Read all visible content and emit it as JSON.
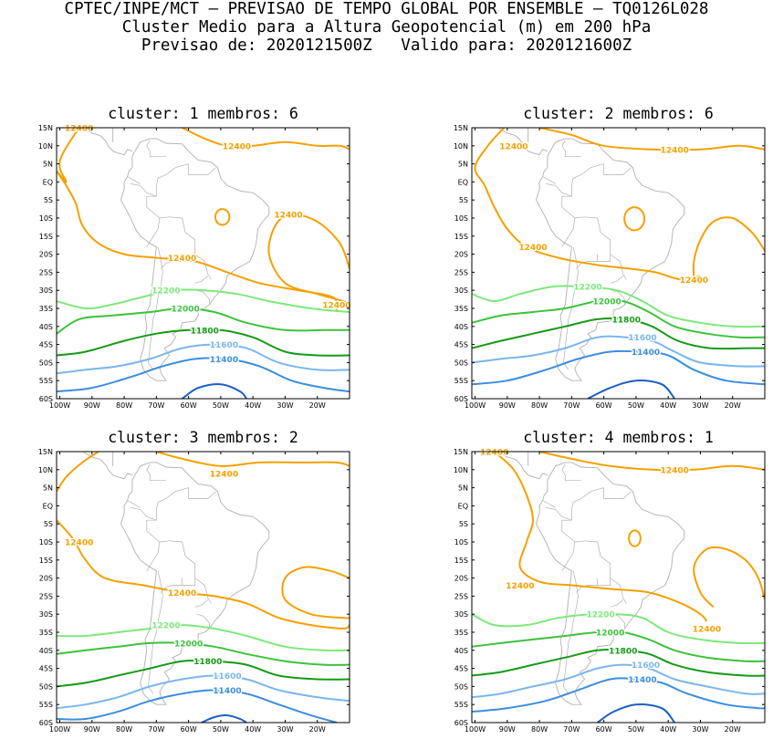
{
  "header": {
    "line1": "CPTEC/INPE/MCT — PREVISAO DE TEMPO GLOBAL POR ENSEMBLE — TQ0126L028",
    "line2": "Cluster Medio para a Altura Geopotencial (m) em 200 hPa",
    "line3": "Previsao de: 2020121500Z   Valido para: 2020121600Z"
  },
  "colors": {
    "c12400": "#f5a000",
    "c12200": "#7de87a",
    "c12000": "#3cc23c",
    "c11800": "#169a16",
    "c11600": "#7ab6ec",
    "c11400": "#3b8de0",
    "c11200": "#1a5fc8",
    "coast": "#b0b0b0"
  },
  "axes": {
    "lat_labels": [
      "15N",
      "10N",
      "5N",
      "EQ",
      "5S",
      "10S",
      "15S",
      "20S",
      "25S",
      "30S",
      "35S",
      "40S",
      "45S",
      "50S",
      "55S",
      "60S"
    ],
    "lon_labels": [
      "100W",
      "90W",
      "80W",
      "70W",
      "60W",
      "50W",
      "40W",
      "30W",
      "20W"
    ]
  },
  "panels": [
    {
      "title": "cluster: 1   membros: 6",
      "labels": [
        {
          "text": "12400",
          "lon": -94,
          "lat": 15,
          "color": "c12400"
        },
        {
          "text": "12400",
          "lon": -45,
          "lat": 10,
          "color": "c12400"
        },
        {
          "text": "12400",
          "lon": -29,
          "lat": -9,
          "color": "c12400"
        },
        {
          "text": "12400",
          "lon": -62,
          "lat": -21,
          "color": "c12400"
        },
        {
          "text": "12400",
          "lon": -14,
          "lat": -34,
          "color": "c12400"
        },
        {
          "text": "12200",
          "lon": -67,
          "lat": -30,
          "color": "c12200"
        },
        {
          "text": "12000",
          "lon": -61,
          "lat": -35,
          "color": "c12000"
        },
        {
          "text": "11800",
          "lon": -55,
          "lat": -41,
          "color": "c11800"
        },
        {
          "text": "11600",
          "lon": -49,
          "lat": -45,
          "color": "c11600"
        },
        {
          "text": "11400",
          "lon": -49,
          "lat": -49,
          "color": "c11400"
        }
      ]
    },
    {
      "title": "cluster: 2   membros: 6",
      "labels": [
        {
          "text": "12400",
          "lon": -88,
          "lat": 10,
          "color": "c12400"
        },
        {
          "text": "12400",
          "lon": -38,
          "lat": 9,
          "color": "c12400"
        },
        {
          "text": "12400",
          "lon": -82,
          "lat": -18,
          "color": "c12400"
        },
        {
          "text": "12400",
          "lon": -32,
          "lat": -27,
          "color": "c12400"
        },
        {
          "text": "12200",
          "lon": -65,
          "lat": -29,
          "color": "c12200"
        },
        {
          "text": "12000",
          "lon": -59,
          "lat": -33,
          "color": "c12000"
        },
        {
          "text": "11800",
          "lon": -53,
          "lat": -38,
          "color": "c11800"
        },
        {
          "text": "11600",
          "lon": -48,
          "lat": -43,
          "color": "c11600"
        },
        {
          "text": "11400",
          "lon": -47,
          "lat": -47,
          "color": "c11400"
        }
      ]
    },
    {
      "title": "cluster: 3   membros: 2",
      "labels": [
        {
          "text": "12400",
          "lon": -94,
          "lat": -10,
          "color": "c12400"
        },
        {
          "text": "12400",
          "lon": -49,
          "lat": 9,
          "color": "c12400"
        },
        {
          "text": "12400",
          "lon": -62,
          "lat": -24,
          "color": "c12400"
        },
        {
          "text": "12200",
          "lon": -67,
          "lat": -33,
          "color": "c12200"
        },
        {
          "text": "12000",
          "lon": -60,
          "lat": -38,
          "color": "c12000"
        },
        {
          "text": "11800",
          "lon": -54,
          "lat": -43,
          "color": "c11800"
        },
        {
          "text": "11600",
          "lon": -48,
          "lat": -47,
          "color": "c11600"
        },
        {
          "text": "11400",
          "lon": -48,
          "lat": -51,
          "color": "c11400"
        }
      ]
    },
    {
      "title": "cluster: 4   membros: 1",
      "labels": [
        {
          "text": "12400",
          "lon": -94,
          "lat": 15,
          "color": "c12400"
        },
        {
          "text": "12400",
          "lon": -38,
          "lat": 10,
          "color": "c12400"
        },
        {
          "text": "12400",
          "lon": -86,
          "lat": -22,
          "color": "c12400"
        },
        {
          "text": "12400",
          "lon": -28,
          "lat": -34,
          "color": "c12400"
        },
        {
          "text": "12200",
          "lon": -61,
          "lat": -30,
          "color": "c12200"
        },
        {
          "text": "12000",
          "lon": -58,
          "lat": -35,
          "color": "c12000"
        },
        {
          "text": "11800",
          "lon": -54,
          "lat": -40,
          "color": "c11800"
        },
        {
          "text": "11600",
          "lon": -47,
          "lat": -44,
          "color": "c11600"
        },
        {
          "text": "11400",
          "lon": -48,
          "lat": -48,
          "color": "c11400"
        }
      ]
    }
  ]
}
